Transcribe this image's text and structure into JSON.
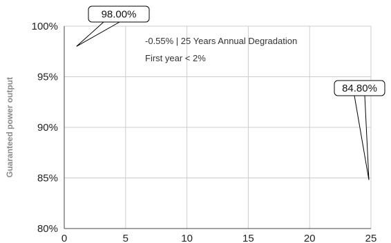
{
  "chart_data": {
    "type": "line",
    "title": "",
    "xlabel": "",
    "ylabel": "Guaranteed power output",
    "x_ticks": [
      "0",
      "5",
      "10",
      "15",
      "20",
      "25"
    ],
    "y_ticks": [
      "80%",
      "85%",
      "90%",
      "95%",
      "100%"
    ],
    "xlim": [
      0,
      25
    ],
    "ylim": [
      80,
      100
    ],
    "grid": true,
    "legend": "none",
    "annotations": [
      "-0.55% | 25 Years Annual Degradation",
      "First year < 2%"
    ],
    "callouts": [
      {
        "label": "98.00%",
        "x": 1,
        "y": 98.0
      },
      {
        "label": "84.80%",
        "x": 25,
        "y": 84.8
      }
    ],
    "colors": {
      "grid": "#cccccc",
      "axis": "#444444",
      "callout": "#000000"
    }
  }
}
